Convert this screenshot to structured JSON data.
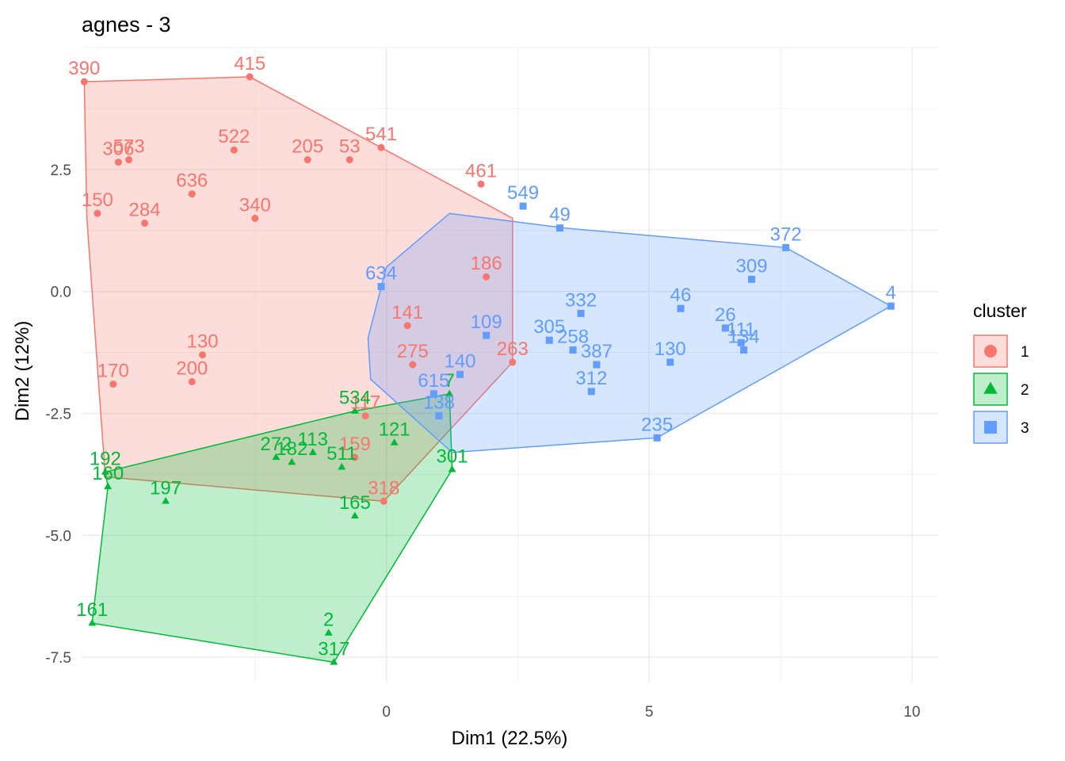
{
  "chart_data": {
    "type": "scatter",
    "title": "agnes - 3",
    "xlabel": "Dim1 (22.5%)",
    "ylabel": "Dim2 (12%)",
    "xlim": [
      -5.8,
      10.5
    ],
    "ylim": [
      -8.0,
      5.0
    ],
    "x_ticks": [
      0,
      5,
      10
    ],
    "x_tick_labels": [
      "0",
      "5",
      "10"
    ],
    "y_ticks": [
      2.5,
      0.0,
      -2.5,
      -5.0,
      -7.5
    ],
    "y_tick_labels": [
      "2.5",
      "0.0",
      "-2.5",
      "-5.0",
      "-7.5"
    ],
    "grid": true,
    "legend": {
      "title": "cluster",
      "position": "right",
      "entries": [
        {
          "label": "1",
          "color": "#F8766D",
          "shape": "circle"
        },
        {
          "label": "2",
          "color": "#00BA38",
          "shape": "triangle"
        },
        {
          "label": "3",
          "color": "#619CFF",
          "shape": "square"
        }
      ]
    },
    "series": [
      {
        "name": "1",
        "color": "#F8766D",
        "shape": "circle",
        "hull": [
          [
            -5.75,
            4.3
          ],
          [
            -2.6,
            4.4
          ],
          [
            -0.1,
            2.95
          ],
          [
            2.4,
            1.5
          ],
          [
            2.4,
            -1.45
          ],
          [
            -0.05,
            -4.3
          ],
          [
            -5.35,
            -3.8
          ],
          [
            -5.7,
            1.5
          ]
        ],
        "points": [
          {
            "label": "390",
            "x": -5.75,
            "y": 4.3
          },
          {
            "label": "415",
            "x": -2.6,
            "y": 4.4
          },
          {
            "label": "541",
            "x": -0.1,
            "y": 2.95
          },
          {
            "label": "522",
            "x": -2.9,
            "y": 2.9
          },
          {
            "label": "573",
            "x": -4.9,
            "y": 2.7
          },
          {
            "label": "306",
            "x": -5.1,
            "y": 2.65
          },
          {
            "label": "205",
            "x": -1.5,
            "y": 2.7
          },
          {
            "label": "53",
            "x": -0.7,
            "y": 2.7
          },
          {
            "label": "461",
            "x": 1.8,
            "y": 2.2
          },
          {
            "label": "636",
            "x": -3.7,
            "y": 2.0
          },
          {
            "label": "340",
            "x": -2.5,
            "y": 1.5
          },
          {
            "label": "284",
            "x": -4.6,
            "y": 1.4
          },
          {
            "label": "170",
            "x": -5.2,
            "y": -1.9
          },
          {
            "label": "200",
            "x": -3.7,
            "y": -1.85
          },
          {
            "label": "117",
            "x": -0.4,
            "y": -2.55
          },
          {
            "label": "159",
            "x": -0.6,
            "y": -3.4
          },
          {
            "label": "318",
            "x": -0.05,
            "y": -4.3
          },
          {
            "label": "263",
            "x": 2.4,
            "y": -1.45
          },
          {
            "label": "275",
            "x": 0.5,
            "y": -1.5
          },
          {
            "label": "141",
            "x": 0.4,
            "y": -0.7
          },
          {
            "label": "150",
            "x": -5.5,
            "y": 1.6
          },
          {
            "label": "186",
            "x": 1.9,
            "y": 0.3
          },
          {
            "label": "130",
            "x": -3.5,
            "y": -1.3
          }
        ]
      },
      {
        "name": "2",
        "color": "#00BA38",
        "shape": "triangle",
        "hull": [
          [
            -0.6,
            -2.45
          ],
          [
            1.2,
            -2.1
          ],
          [
            1.25,
            -3.65
          ],
          [
            -1.0,
            -7.6
          ],
          [
            -5.6,
            -6.8
          ],
          [
            -5.3,
            -4.0
          ],
          [
            -5.35,
            -3.7
          ]
        ],
        "points": [
          {
            "label": "534",
            "x": -0.6,
            "y": -2.45
          },
          {
            "label": "7",
            "x": 1.2,
            "y": -2.1
          },
          {
            "label": "301",
            "x": 1.25,
            "y": -3.65
          },
          {
            "label": "121",
            "x": 0.15,
            "y": -3.1
          },
          {
            "label": "113",
            "x": -1.4,
            "y": -3.3
          },
          {
            "label": "272",
            "x": -2.1,
            "y": -3.4
          },
          {
            "label": "182",
            "x": -1.8,
            "y": -3.5
          },
          {
            "label": "511",
            "x": -0.85,
            "y": -3.6
          },
          {
            "label": "192",
            "x": -5.35,
            "y": -3.7
          },
          {
            "label": "160",
            "x": -5.3,
            "y": -4.0
          },
          {
            "label": "197",
            "x": -4.2,
            "y": -4.3
          },
          {
            "label": "165",
            "x": -0.6,
            "y": -4.6
          },
          {
            "label": "161",
            "x": -5.6,
            "y": -6.8
          },
          {
            "label": "2",
            "x": -1.1,
            "y": -7.0
          },
          {
            "label": "317",
            "x": -1.0,
            "y": -7.6
          }
        ]
      },
      {
        "name": "3",
        "color": "#619CFF",
        "shape": "square",
        "hull": [
          [
            1.2,
            1.6
          ],
          [
            3.4,
            1.3
          ],
          [
            7.6,
            0.9
          ],
          [
            9.6,
            -0.3
          ],
          [
            5.15,
            -3.0
          ],
          [
            1.25,
            -3.3
          ],
          [
            -0.3,
            -1.8
          ],
          [
            -0.35,
            -0.95
          ],
          [
            0.0,
            0.5
          ]
        ],
        "points": [
          {
            "label": "549",
            "x": 2.6,
            "y": 1.75
          },
          {
            "label": "49",
            "x": 3.3,
            "y": 1.3
          },
          {
            "label": "372",
            "x": 7.6,
            "y": 0.9
          },
          {
            "label": "309",
            "x": 6.95,
            "y": 0.25
          },
          {
            "label": "4",
            "x": 9.6,
            "y": -0.3
          },
          {
            "label": "46",
            "x": 5.6,
            "y": -0.35
          },
          {
            "label": "26",
            "x": 6.45,
            "y": -0.75
          },
          {
            "label": "111",
            "x": 6.75,
            "y": -1.05
          },
          {
            "label": "134",
            "x": 6.8,
            "y": -1.2
          },
          {
            "label": "130",
            "x": 5.4,
            "y": -1.45
          },
          {
            "label": "332",
            "x": 3.7,
            "y": -0.45
          },
          {
            "label": "305",
            "x": 3.1,
            "y": -1.0
          },
          {
            "label": "258",
            "x": 3.55,
            "y": -1.2
          },
          {
            "label": "387",
            "x": 4.0,
            "y": -1.5
          },
          {
            "label": "312",
            "x": 3.9,
            "y": -2.05
          },
          {
            "label": "235",
            "x": 5.15,
            "y": -3.0
          },
          {
            "label": "138",
            "x": 1.0,
            "y": -2.55
          },
          {
            "label": "140",
            "x": 1.4,
            "y": -1.7
          },
          {
            "label": "615",
            "x": 0.9,
            "y": -2.1
          },
          {
            "label": "634",
            "x": -0.1,
            "y": 0.1
          },
          {
            "label": "109",
            "x": 1.9,
            "y": -0.9
          }
        ]
      }
    ]
  }
}
